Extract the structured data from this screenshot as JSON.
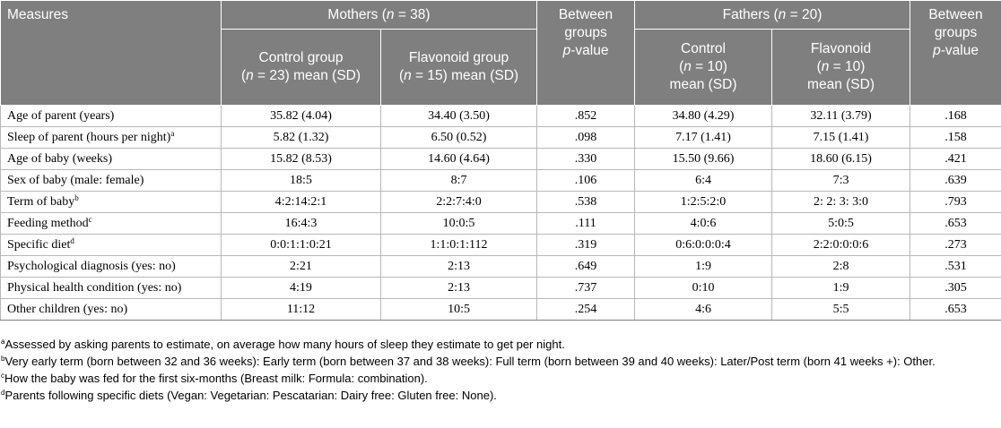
{
  "header": {
    "measures": "Measures",
    "mothers_group": "Mothers (n = 38)",
    "between_groups_1": "Between groups",
    "p_value_1": "p-value",
    "fathers_group": "Fathers (n = 20)",
    "between_groups_2": "Between groups",
    "p_value_2": "p-value",
    "mothers_control_l1": "Control group",
    "mothers_control_l2": "(n = 23) mean (SD)",
    "mothers_flav_l1": "Flavonoid group",
    "mothers_flav_l2": "(n = 15) mean (SD)",
    "fathers_control_l1": "Control",
    "fathers_control_l2": "(n = 10)",
    "fathers_control_l3": "mean (SD)",
    "fathers_flav_l1": "Flavonoid",
    "fathers_flav_l2": "(n = 10)",
    "fathers_flav_l3": "mean (SD)"
  },
  "rows": [
    {
      "label": "Age of parent (years)",
      "sup": "",
      "m_control": "35.82 (4.04)",
      "m_flav": "34.40 (3.50)",
      "m_p": ".852",
      "f_control": "34.80 (4.29)",
      "f_flav": "32.11 (3.79)",
      "f_p": ".168"
    },
    {
      "label": "Sleep of parent (hours per night)",
      "sup": "a",
      "m_control": "5.82 (1.32)",
      "m_flav": "6.50 (0.52)",
      "m_p": ".098",
      "f_control": "7.17 (1.41)",
      "f_flav": "7.15 (1.41)",
      "f_p": ".158"
    },
    {
      "label": "Age of baby (weeks)",
      "sup": "",
      "m_control": "15.82 (8.53)",
      "m_flav": "14.60 (4.64)",
      "m_p": ".330",
      "f_control": "15.50 (9.66)",
      "f_flav": "18.60 (6.15)",
      "f_p": ".421"
    },
    {
      "label": "Sex of baby (male: female)",
      "sup": "",
      "m_control": "18:5",
      "m_flav": "8:7",
      "m_p": ".106",
      "f_control": "6:4",
      "f_flav": "7:3",
      "f_p": ".639"
    },
    {
      "label": "Term of baby",
      "sup": "b",
      "m_control": "4:2:14:2:1",
      "m_flav": "2:2:7:4:0",
      "m_p": ".538",
      "f_control": "1:2:5:2:0",
      "f_flav": "2: 2: 3: 3:0",
      "f_p": ".793"
    },
    {
      "label": "Feeding method",
      "sup": "c",
      "m_control": "16:4:3",
      "m_flav": "10:0:5",
      "m_p": ".111",
      "f_control": "4:0:6",
      "f_flav": "5:0:5",
      "f_p": ".653"
    },
    {
      "label": "Specific diet",
      "sup": "d",
      "m_control": "0:0:1:1:0:21",
      "m_flav": "1:1:0:1:112",
      "m_p": ".319",
      "f_control": "0:6:0:0:0:4",
      "f_flav": "2:2:0:0:0:6",
      "f_p": ".273"
    },
    {
      "label": "Psychological diagnosis (yes: no)",
      "sup": "",
      "m_control": "2:21",
      "m_flav": "2:13",
      "m_p": ".649",
      "f_control": "1:9",
      "f_flav": "2:8",
      "f_p": ".531"
    },
    {
      "label": "Physical health condition (yes: no)",
      "sup": "",
      "m_control": "4:19",
      "m_flav": "2:13",
      "m_p": ".737",
      "f_control": "0:10",
      "f_flav": "1:9",
      "f_p": ".305"
    },
    {
      "label": "Other children (yes: no)",
      "sup": "",
      "m_control": "11:12",
      "m_flav": "10:5",
      "m_p": ".254",
      "f_control": "4:6",
      "f_flav": "5:5",
      "f_p": ".653"
    }
  ],
  "footnotes": [
    {
      "mark": "a",
      "text": "Assessed by asking parents to estimate, on average how many hours of sleep they estimate to get per night."
    },
    {
      "mark": "b",
      "text": "Very early term (born between 32 and 36 weeks): Early term (born between 37 and 38 weeks): Full term (born between 39 and 40 weeks): Later/Post term (born 41 weeks +): Other."
    },
    {
      "mark": "c",
      "text": "How the baby was fed for the first six-months (Breast milk: Formula: combination)."
    },
    {
      "mark": "d",
      "text": "Parents following specific diets (Vegan: Vegetarian: Pescatarian: Dairy free: Gluten free: None)."
    }
  ]
}
